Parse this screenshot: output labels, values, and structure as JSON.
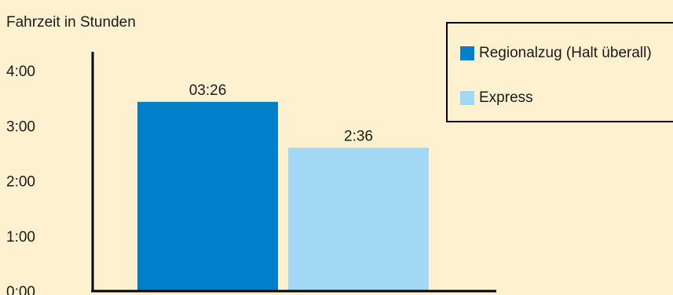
{
  "chart_data": {
    "type": "bar",
    "ylabel": "Fahrzeit in Stunden",
    "y_ticks": [
      "0:00",
      "1:00",
      "2:00",
      "3:00",
      "4:00"
    ],
    "ylim": [
      0,
      4
    ],
    "grid": false,
    "legend_position": "top-right",
    "series": [
      {
        "name": "Regionalzug (Halt überall)",
        "value": 3.4333,
        "label": "03:26",
        "color": "#0080c8"
      },
      {
        "name": "Express",
        "value": 2.6,
        "label": "2:36",
        "color": "#a3d8f4"
      }
    ]
  }
}
